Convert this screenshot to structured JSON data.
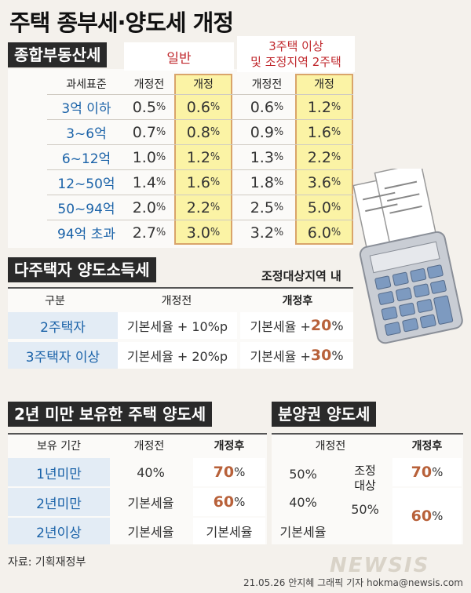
{
  "title": "주택 종부세·양도세 개정",
  "jongbu": {
    "header": "종합부동산세",
    "group_general": "일반",
    "group_multi": "3주택 이상\n및 조정지역 2주택",
    "col_base": "과세표준",
    "col_before": "개정전",
    "col_after": "개정",
    "rows": [
      {
        "base": "3억 이하",
        "g_before": "0.5",
        "g_after": "0.6",
        "m_before": "0.6",
        "m_after": "1.2"
      },
      {
        "base": "3~6억",
        "g_before": "0.7",
        "g_after": "0.8",
        "m_before": "0.9",
        "m_after": "1.6"
      },
      {
        "base": "6~12억",
        "g_before": "1.0",
        "g_after": "1.2",
        "m_before": "1.3",
        "m_after": "2.2"
      },
      {
        "base": "12~50억",
        "g_before": "1.4",
        "g_after": "1.6",
        "m_before": "1.8",
        "m_after": "3.6"
      },
      {
        "base": "50~94억",
        "g_before": "2.0",
        "g_after": "2.2",
        "m_before": "2.5",
        "m_after": "5.0"
      },
      {
        "base": "94억 초과",
        "g_before": "2.7",
        "g_after": "3.0",
        "m_before": "3.2",
        "m_after": "6.0"
      }
    ],
    "pct": "%"
  },
  "multi": {
    "header": "다주택자 양도소득세",
    "note": "조정대상지역 내",
    "col_kind": "구분",
    "col_before": "개정전",
    "col_after": "개정후",
    "rows": [
      {
        "kind": "2주택자",
        "before": "기본세율 + 10%p",
        "after_prefix": "기본세율 + ",
        "after_num": "20",
        "after_unit": "%"
      },
      {
        "kind": "3주택자 이상",
        "before": "기본세율 + 20%p",
        "after_prefix": "기본세율 + ",
        "after_num": "30",
        "after_unit": "%"
      }
    ]
  },
  "short": {
    "header": "2년 미만 보유한 주택 양도세",
    "col_period": "보유 기간",
    "col_before": "개정전",
    "col_after": "개정후",
    "rows": [
      {
        "period": "1년미만",
        "before": "40%",
        "after_num": "70",
        "after_unit": "%"
      },
      {
        "period": "2년미만",
        "before": "기본세율",
        "after_num": "60",
        "after_unit": "%"
      },
      {
        "period": "2년이상",
        "before": "기본세율",
        "after_text": "기본세율"
      }
    ]
  },
  "presale": {
    "header": "분양권 양도세",
    "col_before": "개정전",
    "col_after": "개정후",
    "label_adjust": "조정\n대상",
    "before_1": "50%",
    "before_2": "40%",
    "before_3": "기본세율",
    "mid_50": "50%",
    "after_70": "70",
    "after_60": "60",
    "unit": "%"
  },
  "source": "자료: 기획재정부",
  "credit": "21.05.26 안지혜 그래픽 기자  hokma@newsis.com",
  "watermark": "NEWSIS"
}
